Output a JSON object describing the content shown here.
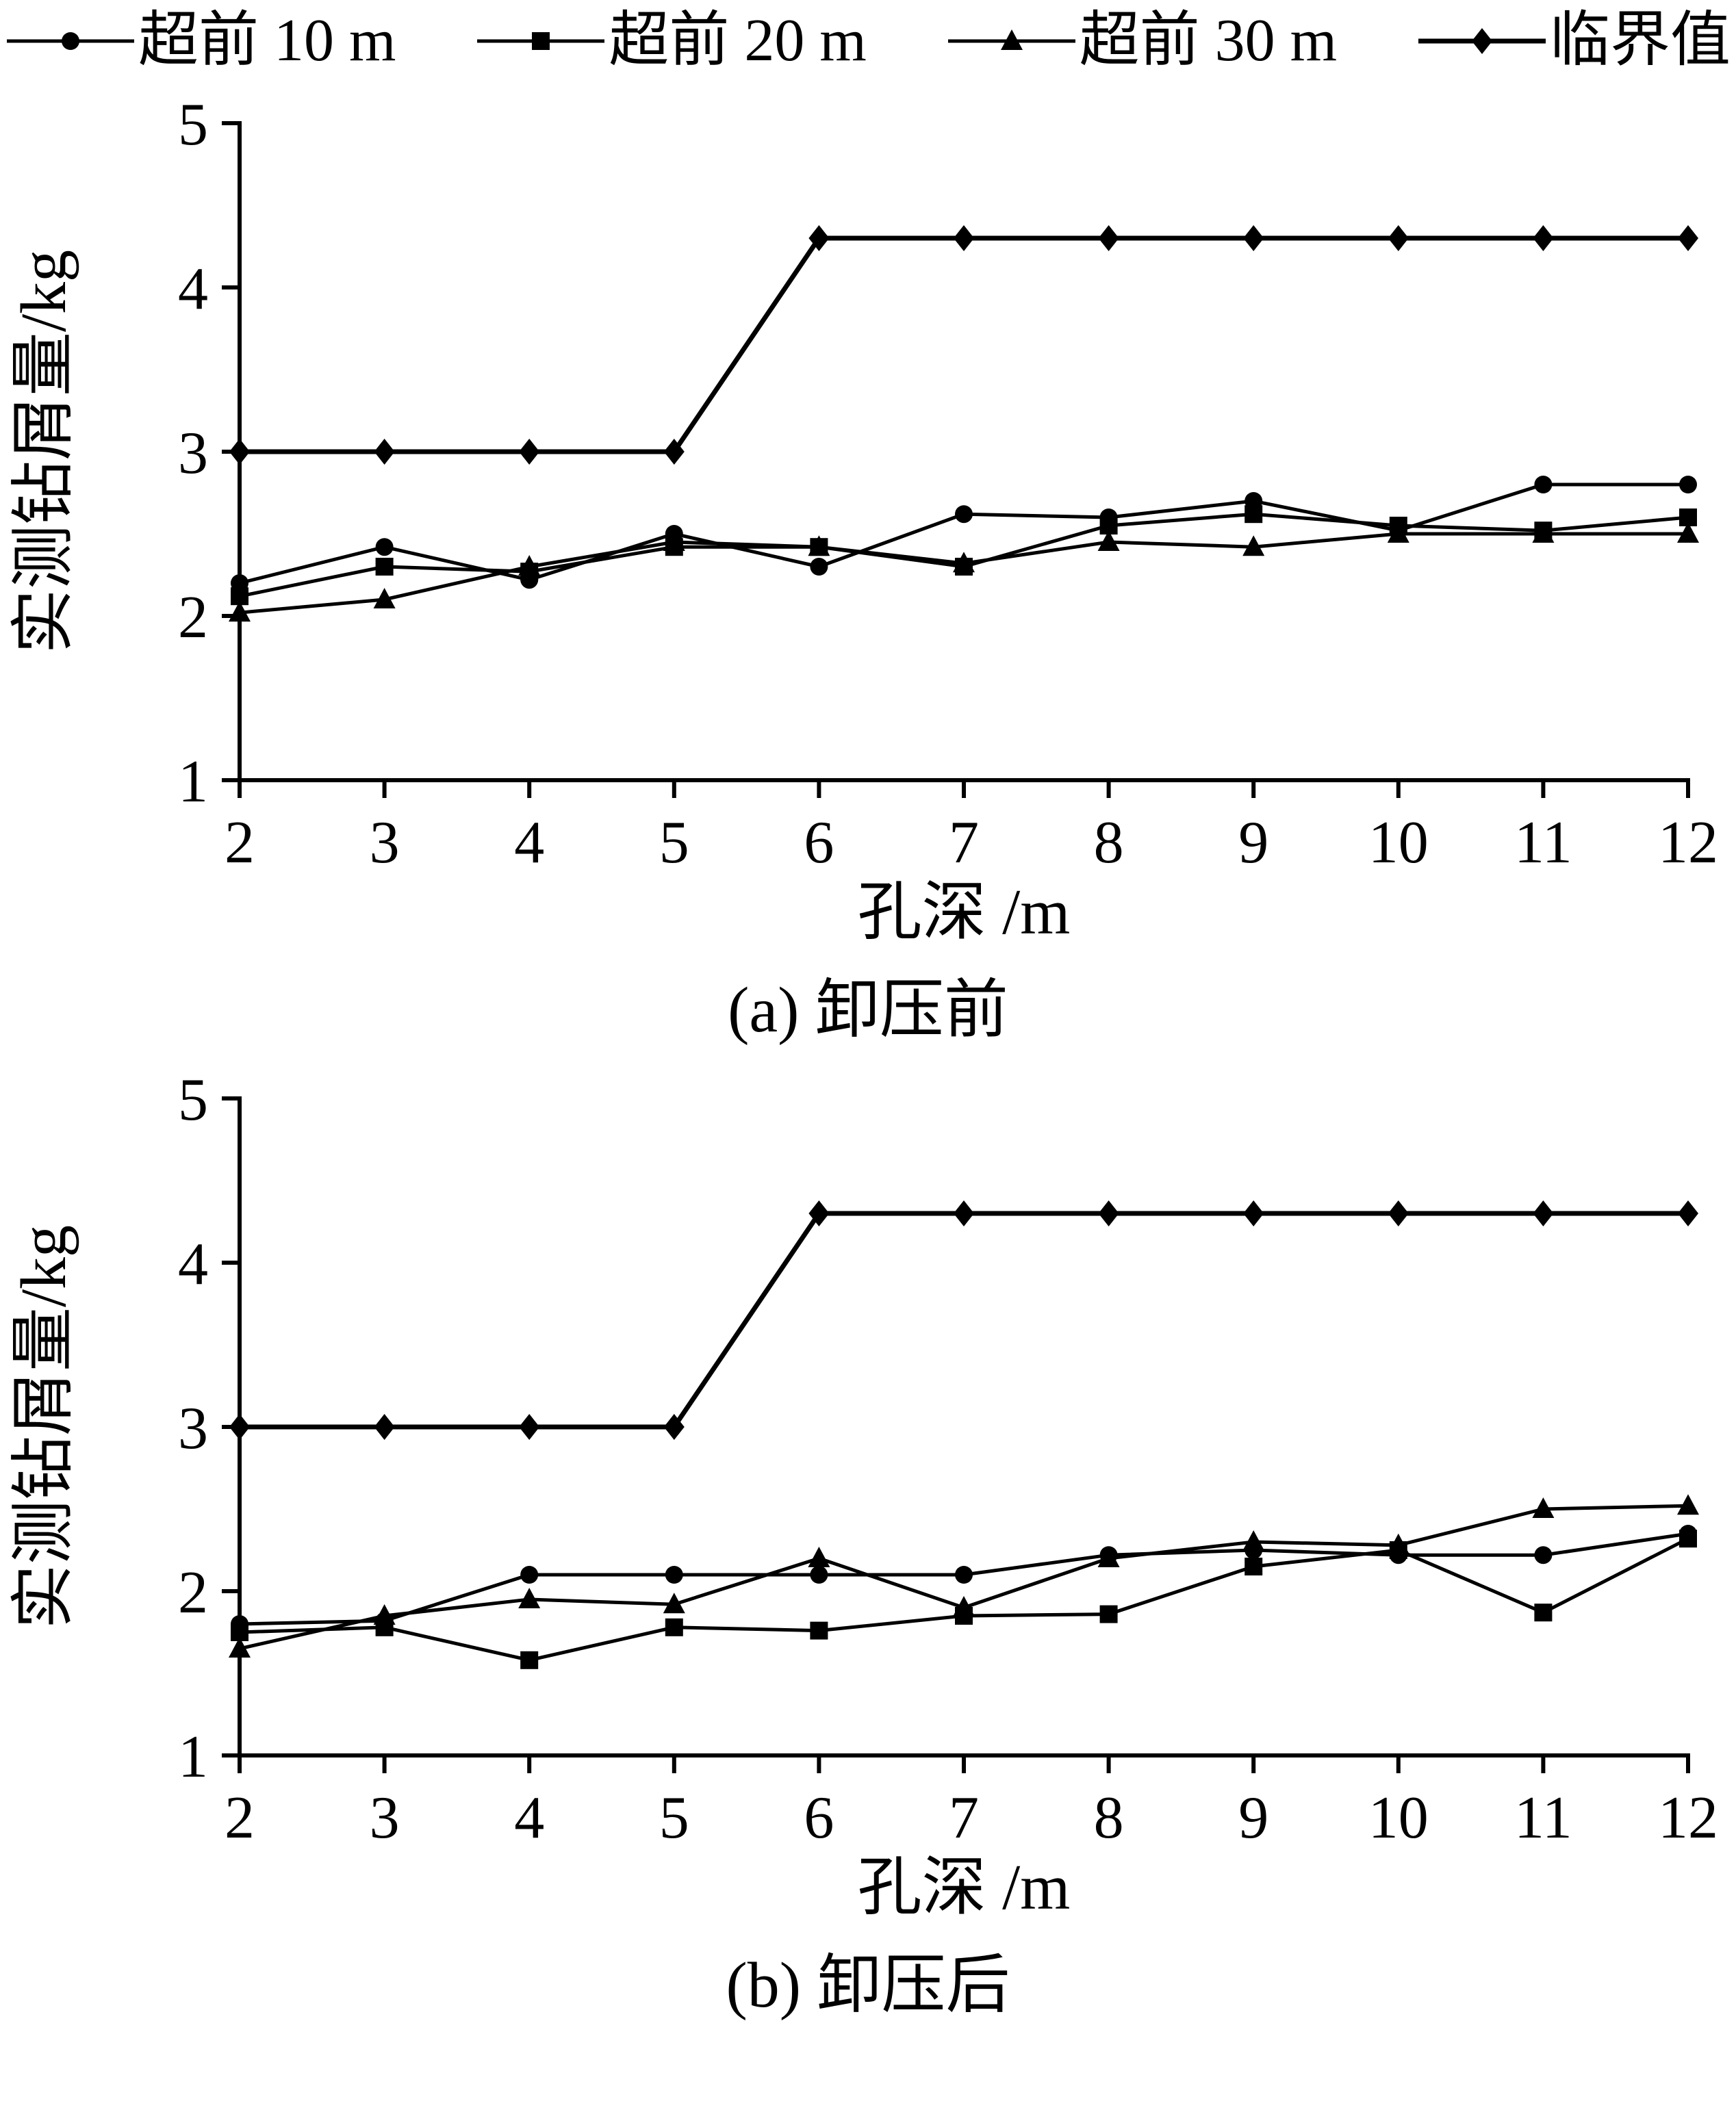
{
  "page": {
    "background": "#ffffff",
    "ink": "#000000"
  },
  "legend": {
    "items": [
      {
        "label": "超前 10 m",
        "marker": "circle"
      },
      {
        "label": "超前 20 m",
        "marker": "square"
      },
      {
        "label": "超前 30 m",
        "marker": "triangle"
      },
      {
        "label": "临界值",
        "marker": "diamond"
      }
    ]
  },
  "chart_data": [
    {
      "type": "line",
      "title": "(a) 卸压前",
      "xlabel": "孔深 /m",
      "ylabel": "实测钻屑量/kg",
      "x": [
        2,
        3,
        4,
        5,
        6,
        7,
        8,
        9,
        10,
        11,
        12
      ],
      "xlim": [
        2,
        12
      ],
      "ylim": [
        1,
        5
      ],
      "yticks": [
        1,
        2,
        3,
        4,
        5
      ],
      "grid": false,
      "legend_position": "top-shared",
      "series": [
        {
          "name": "超前 10 m",
          "marker": "circle",
          "values": [
            2.2,
            2.42,
            2.22,
            2.5,
            2.3,
            2.62,
            2.6,
            2.7,
            2.52,
            2.8,
            2.8
          ]
        },
        {
          "name": "超前 20 m",
          "marker": "square",
          "values": [
            2.12,
            2.3,
            2.27,
            2.42,
            2.42,
            2.3,
            2.55,
            2.62,
            2.55,
            2.52,
            2.6
          ]
        },
        {
          "name": "超前 30 m",
          "marker": "triangle",
          "values": [
            2.02,
            2.1,
            2.3,
            2.45,
            2.42,
            2.32,
            2.45,
            2.42,
            2.5,
            2.5,
            2.5
          ]
        },
        {
          "name": "临界值",
          "marker": "diamond",
          "values": [
            3.0,
            3.0,
            3.0,
            3.0,
            4.3,
            4.3,
            4.3,
            4.3,
            4.3,
            4.3,
            4.3
          ]
        }
      ]
    },
    {
      "type": "line",
      "title": "(b) 卸压后",
      "xlabel": "孔深 /m",
      "ylabel": "实测钻屑量/kg",
      "x": [
        2,
        3,
        4,
        5,
        6,
        7,
        8,
        9,
        10,
        11,
        12
      ],
      "xlim": [
        2,
        12
      ],
      "ylim": [
        1,
        5
      ],
      "yticks": [
        1,
        2,
        3,
        4,
        5
      ],
      "grid": false,
      "legend_position": "top-shared",
      "series": [
        {
          "name": "超前 10 m",
          "marker": "circle",
          "values": [
            1.8,
            1.82,
            2.1,
            2.1,
            2.1,
            2.1,
            2.22,
            2.25,
            2.22,
            2.22,
            2.35
          ]
        },
        {
          "name": "超前 20 m",
          "marker": "square",
          "values": [
            1.75,
            1.78,
            1.58,
            1.78,
            1.76,
            1.85,
            1.86,
            2.15,
            2.25,
            1.87,
            2.32
          ]
        },
        {
          "name": "超前 30 m",
          "marker": "triangle",
          "values": [
            1.65,
            1.85,
            1.95,
            1.92,
            2.2,
            1.9,
            2.2,
            2.3,
            2.28,
            2.5,
            2.52
          ]
        },
        {
          "name": "临界值",
          "marker": "diamond",
          "values": [
            3.0,
            3.0,
            3.0,
            3.0,
            4.3,
            4.3,
            4.3,
            4.3,
            4.3,
            4.3,
            4.3
          ]
        }
      ]
    }
  ]
}
